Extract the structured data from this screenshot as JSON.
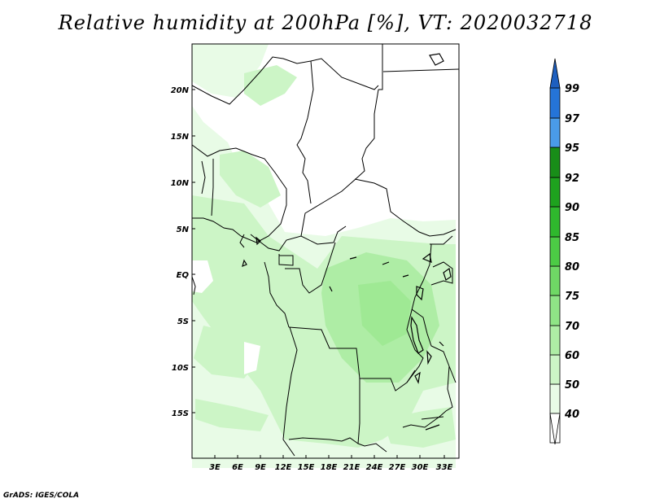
{
  "title": "Relative humidity at 200hPa [%], VT: 2020032718",
  "credit": "GrADS: IGES/COLA",
  "map": {
    "lat_range": [
      -20.5,
      24.5
    ],
    "lon_range": [
      0,
      35
    ],
    "lat_labels": [
      "20N",
      "15N",
      "10N",
      "5N",
      "EQ",
      "5S",
      "10S",
      "15S"
    ],
    "lon_labels": [
      "3E",
      "6E",
      "9E",
      "12E",
      "15E",
      "18E",
      "21E",
      "24E",
      "27E",
      "30E",
      "33E"
    ]
  },
  "colorbar": {
    "labels": [
      "40",
      "50",
      "60",
      "70",
      "75",
      "80",
      "85",
      "90",
      "92",
      "95",
      "97",
      "99"
    ],
    "colors": [
      "#ffffff",
      "#e8fbe6",
      "#ccf5c6",
      "#aeeda5",
      "#8fe486",
      "#6fd865",
      "#4ccb45",
      "#2fb82d",
      "#1ea21e",
      "#188d18",
      "#4a9be8",
      "#2574d8",
      "#1e5fbf"
    ]
  }
}
